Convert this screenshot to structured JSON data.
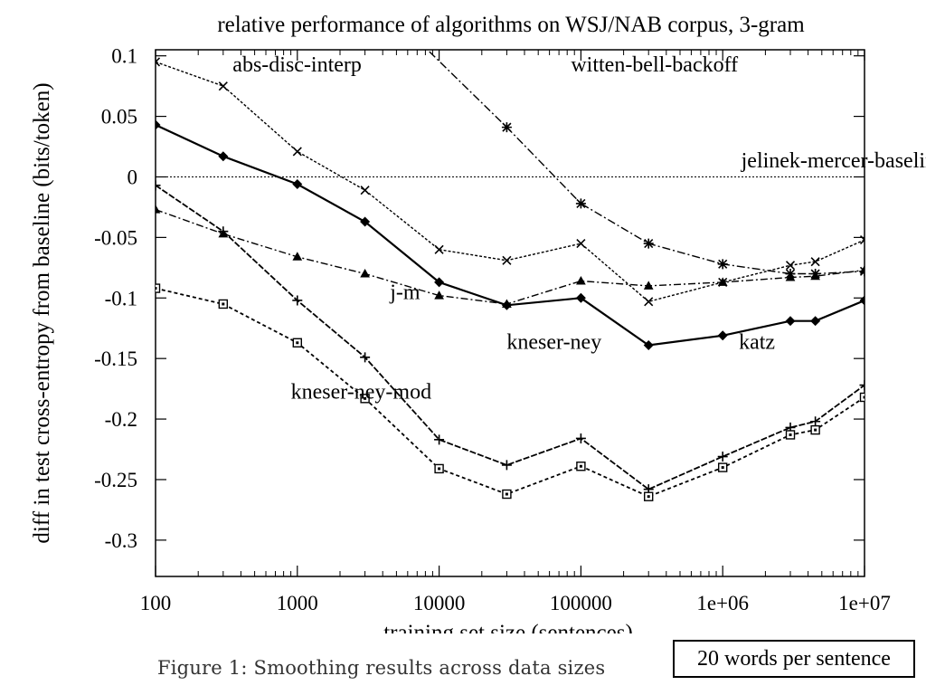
{
  "chart_data": {
    "type": "line",
    "title": "relative performance of algorithms on WSJ/NAB corpus, 3-gram",
    "xlabel": "training set size (sentences)",
    "ylabel": "diff in test cross-entropy from baseline (bits/token)",
    "xscale": "log",
    "xlim": [
      100,
      10000000
    ],
    "ylim": [
      -0.33,
      0.1
    ],
    "x_ticks": [
      {
        "value": 100,
        "label": "100"
      },
      {
        "value": 1000,
        "label": "1000"
      },
      {
        "value": 10000,
        "label": "10000"
      },
      {
        "value": 100000,
        "label": "100000"
      },
      {
        "value": 1000000,
        "label": "1e+06"
      },
      {
        "value": 10000000,
        "label": "1e+07"
      }
    ],
    "y_ticks": [
      {
        "value": 0.1,
        "label": "0.1"
      },
      {
        "value": 0.05,
        "label": "0.05"
      },
      {
        "value": 0,
        "label": "0"
      },
      {
        "value": -0.05,
        "label": "-0.05"
      },
      {
        "value": -0.1,
        "label": "-0.1"
      },
      {
        "value": -0.15,
        "label": "-0.15"
      },
      {
        "value": -0.2,
        "label": "-0.2"
      },
      {
        "value": -0.25,
        "label": "-0.25"
      },
      {
        "value": -0.3,
        "label": "-0.3"
      }
    ],
    "series": [
      {
        "name": "jelinek-mercer-baseline",
        "marker": "none",
        "dash": "2,2",
        "width": 1,
        "x": [
          100,
          10000000
        ],
        "y": [
          0,
          0
        ]
      },
      {
        "name": "abs-disc-interp",
        "marker": "x",
        "dash": "3,2",
        "width": 1.4,
        "x": [
          100,
          300,
          1000,
          3000,
          10000,
          30000,
          100000,
          300000,
          1000000,
          3000000,
          4500000,
          10000000
        ],
        "y": [
          0.095,
          0.075,
          0.021,
          -0.011,
          -0.06,
          -0.069,
          -0.055,
          -0.103,
          -0.087,
          -0.073,
          -0.07,
          -0.052
        ]
      },
      {
        "name": "witten-bell-backoff",
        "marker": "star",
        "dash": "9,3,2,3",
        "width": 1.4,
        "x": [
          1000,
          30000,
          100000,
          300000,
          1000000,
          3000000,
          4500000,
          10000000
        ],
        "y": [
          0.21,
          0.041,
          -0.022,
          -0.055,
          -0.072,
          -0.08,
          -0.08,
          -0.078
        ]
      },
      {
        "name": "katz",
        "marker": "diamond",
        "dash": "",
        "width": 2.2,
        "x": [
          100,
          300,
          1000,
          3000,
          10000,
          30000,
          100000,
          300000,
          1000000,
          3000000,
          4500000,
          10000000
        ],
        "y": [
          0.043,
          0.017,
          -0.006,
          -0.037,
          -0.087,
          -0.106,
          -0.1,
          -0.139,
          -0.131,
          -0.119,
          -0.119,
          -0.102
        ]
      },
      {
        "name": "j-m",
        "marker": "triangle",
        "dash": "8,3,2,3",
        "width": 1.4,
        "x": [
          100,
          300,
          1000,
          3000,
          10000,
          30000,
          100000,
          300000,
          1000000,
          3000000,
          4500000,
          10000000
        ],
        "y": [
          -0.027,
          -0.047,
          -0.066,
          -0.08,
          -0.098,
          -0.105,
          -0.086,
          -0.09,
          -0.087,
          -0.083,
          -0.082,
          -0.077
        ]
      },
      {
        "name": "kneser-ney",
        "marker": "plus",
        "dash": "7,2",
        "width": 1.8,
        "x": [
          100,
          300,
          1000,
          3000,
          10000,
          30000,
          100000,
          300000,
          1000000,
          3000000,
          4500000,
          10000000
        ],
        "y": [
          -0.007,
          -0.045,
          -0.102,
          -0.149,
          -0.217,
          -0.238,
          -0.216,
          -0.258,
          -0.231,
          -0.207,
          -0.202,
          -0.172
        ]
      },
      {
        "name": "kneser-ney-mod",
        "marker": "square",
        "dash": "4,3",
        "width": 1.8,
        "x": [
          100,
          300,
          1000,
          3000,
          10000,
          30000,
          100000,
          300000,
          1000000,
          3000000,
          4500000,
          10000000
        ],
        "y": [
          -0.092,
          -0.105,
          -0.137,
          -0.183,
          -0.241,
          -0.262,
          -0.239,
          -0.264,
          -0.24,
          -0.213,
          -0.209,
          -0.182
        ]
      }
    ],
    "annotations": [
      {
        "text": "abs-disc-interp",
        "x": 350,
        "y": 0.087
      },
      {
        "text": "witten-bell-backoff",
        "x": 85000,
        "y": 0.087
      },
      {
        "text": "jelinek-mercer-baseline",
        "x": 1350000,
        "y": 0.008
      },
      {
        "text": "j-m",
        "x": 4500,
        "y": -0.101
      },
      {
        "text": "kneser-ney",
        "x": 30000,
        "y": -0.142
      },
      {
        "text": "katz",
        "x": 1300000,
        "y": -0.142
      },
      {
        "text": "kneser-ney-mod",
        "x": 900,
        "y": -0.183
      }
    ]
  },
  "caption": "Figure 1: Smoothing results across data sizes",
  "note_box": "20 words per sentence"
}
